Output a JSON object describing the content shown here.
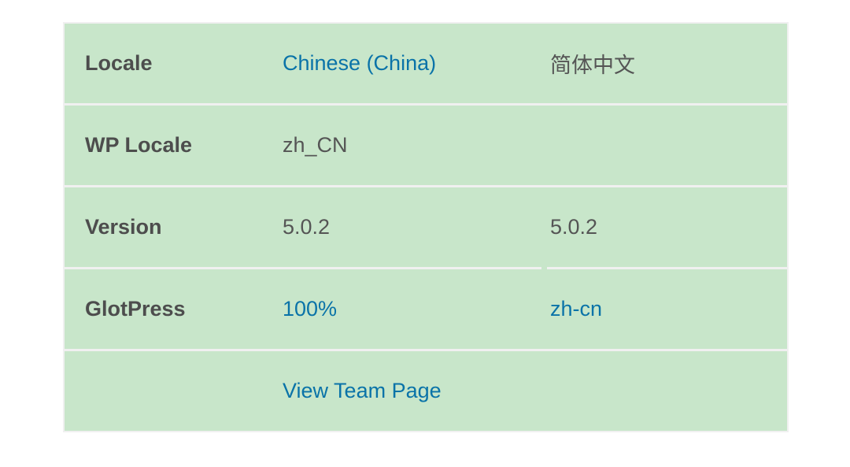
{
  "rows": [
    {
      "label": "Locale",
      "value": "Chinese (China)",
      "value_is_link": true,
      "extra": "简体中文",
      "extra_is_link": false
    },
    {
      "label": "WP Locale",
      "value": "zh_CN",
      "value_is_link": false,
      "extra": "",
      "extra_is_link": false
    },
    {
      "label": "Version",
      "value": "5.0.2",
      "value_is_link": false,
      "extra": "5.0.2",
      "extra_is_link": false
    },
    {
      "label": "GlotPress",
      "value": "100%",
      "value_is_link": true,
      "extra": "zh-cn",
      "extra_is_link": true
    },
    {
      "label": "",
      "value": "View Team Page",
      "value_is_link": true,
      "extra": "",
      "extra_is_link": false
    }
  ],
  "colors": {
    "row_background": "#c8e6ca",
    "link": "#0a73a8",
    "text": "#555555",
    "border": "#f0f0f0"
  }
}
